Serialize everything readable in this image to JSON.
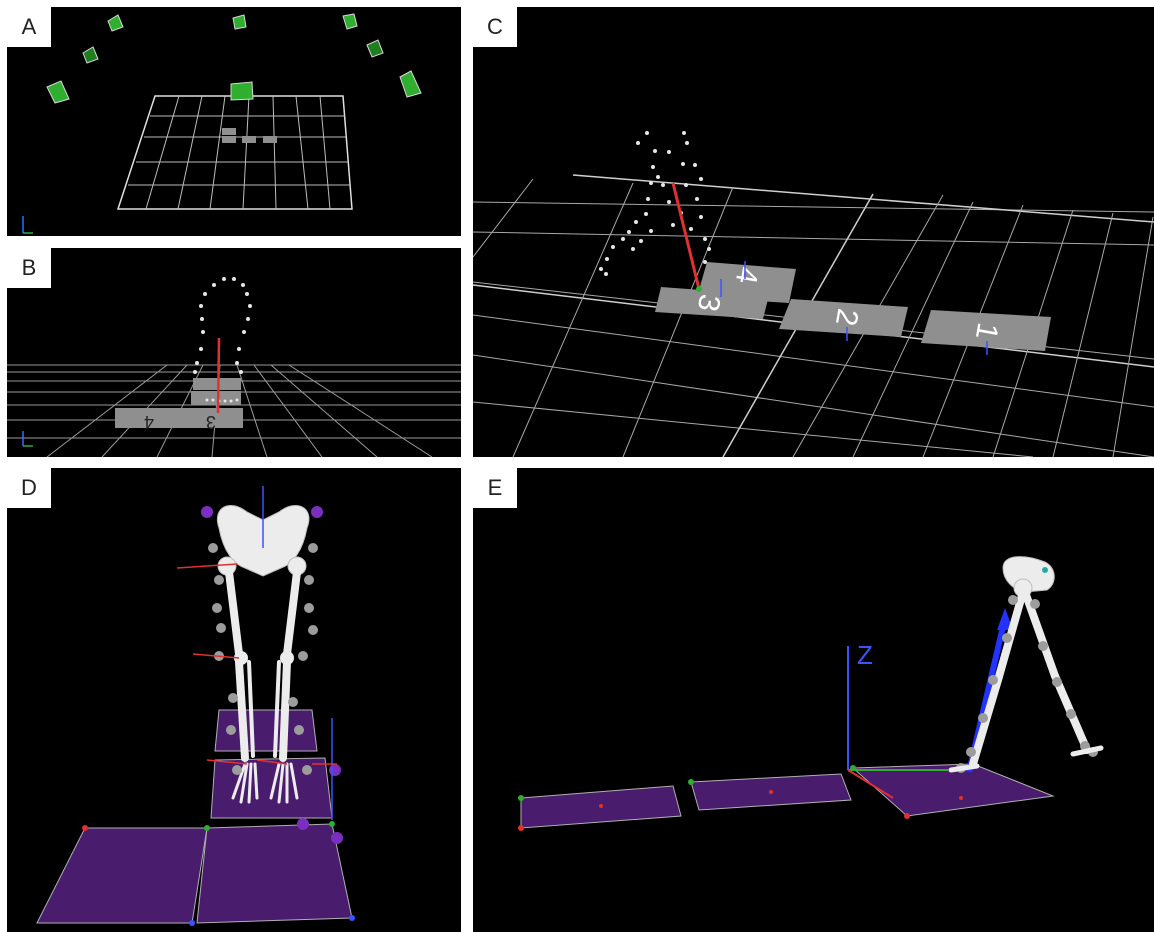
{
  "panels": [
    {
      "label": "A"
    },
    {
      "label": "B"
    },
    {
      "label": "C"
    },
    {
      "label": "D"
    },
    {
      "label": "E"
    }
  ],
  "plate_numbers": {
    "p1": "1",
    "p2": "2",
    "p3": "3",
    "p4": "4"
  },
  "axis_label_z": "Z",
  "colors": {
    "background": "#000000",
    "grid": "#d9d9d9",
    "plate": "#8f8f8f",
    "camera": "#2fae2f",
    "marker": "#e6e6e6",
    "force_vector": "#e0312f",
    "force_vector_blue": "#2233ff",
    "force_plate_purple": "#4a1c6e",
    "bone": "#ececec"
  }
}
